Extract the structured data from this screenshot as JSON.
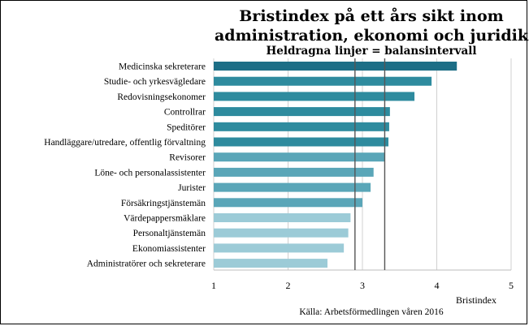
{
  "chart_data": {
    "type": "bar",
    "orientation": "horizontal",
    "title": "Bristindex på ett års sikt inom administration, ekonomi och juridik",
    "title_lines": [
      "Bristindex på ett års sikt inom",
      "administration, ekonomi och juridik"
    ],
    "subtitle": "Heldragna linjer = balansintervall",
    "xlabel": "Bristindex",
    "source": "Källa: Arbetsförmedlingen våren 2016",
    "xlim": [
      1,
      5
    ],
    "xticks": [
      1,
      2,
      3,
      4,
      5
    ],
    "grid": true,
    "balance_interval": [
      2.9,
      3.3
    ],
    "categories": [
      "Medicinska sekreterare",
      "Studie- och yrkesvägledare",
      "Redovisningsekonomer",
      "Controllrar",
      "Speditörer",
      "Handläggare/utredare, offentlig förvaltning",
      "Revisorer",
      "Löne- och personalassistenter",
      "Jurister",
      "Försäkringstjänstemän",
      "Värdepappersmäklare",
      "Personaltjänstemän",
      "Ekonomiassistenter",
      "Administratörer och sekreterare"
    ],
    "values": [
      4.27,
      3.93,
      3.7,
      3.37,
      3.36,
      3.35,
      3.3,
      3.15,
      3.11,
      3.0,
      2.84,
      2.81,
      2.75,
      2.53
    ],
    "bar_colors": [
      "#1d6e86",
      "#2e8b9e",
      "#2e8b9e",
      "#2e8b9e",
      "#2e8b9e",
      "#2e8b9e",
      "#5aa6b8",
      "#5aa6b8",
      "#5aa6b8",
      "#5aa6b8",
      "#9ccbd7",
      "#9ccbd7",
      "#9ccbd7",
      "#9ccbd7"
    ],
    "balance_line_color": "#555555",
    "grid_color": "#d0d0d0"
  }
}
